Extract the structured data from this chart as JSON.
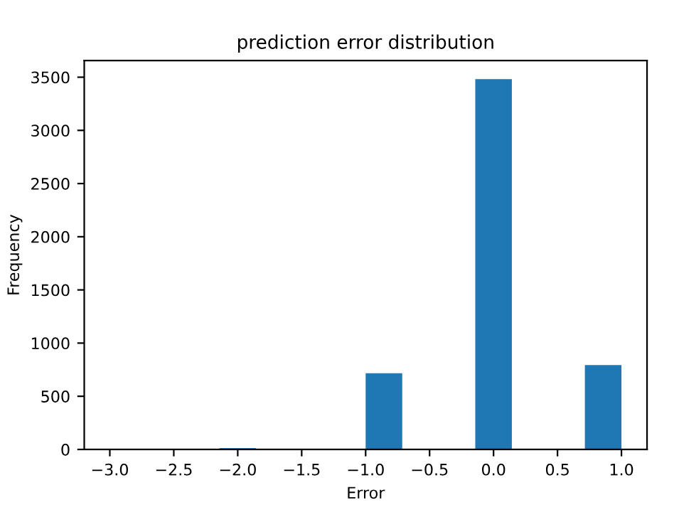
{
  "chart_data": {
    "type": "histogram",
    "title": "prediction error distribution",
    "xlabel": "Error",
    "ylabel": "Frequency",
    "bins": [
      -3,
      -2.714,
      -2.429,
      -2.143,
      -1.857,
      -1.571,
      -1.286,
      -1,
      -0.714,
      -0.429,
      -0.143,
      0.143,
      0.429,
      0.714,
      1
    ],
    "values": [
      0,
      0,
      0,
      13,
      0,
      0,
      0,
      717,
      0,
      0,
      3482,
      0,
      0,
      793
    ],
    "color": "#1f77b4",
    "xlim": [
      -3.2,
      1.2
    ],
    "xticks": [
      {
        "value": -3,
        "label": "−3.0"
      },
      {
        "value": -2.5,
        "label": "−2.5"
      },
      {
        "value": -2,
        "label": "−2.0"
      },
      {
        "value": -1.5,
        "label": "−1.5"
      },
      {
        "value": -1,
        "label": "−1.0"
      },
      {
        "value": -0.5,
        "label": "−0.5"
      },
      {
        "value": 0,
        "label": "0.0"
      },
      {
        "value": 0.5,
        "label": "0.5"
      },
      {
        "value": 1,
        "label": "1.0"
      }
    ],
    "ylim": [
      0,
      3656
    ],
    "yticks": [
      0,
      500,
      1000,
      1500,
      2000,
      2500,
      3000,
      3500
    ],
    "grid": false
  }
}
